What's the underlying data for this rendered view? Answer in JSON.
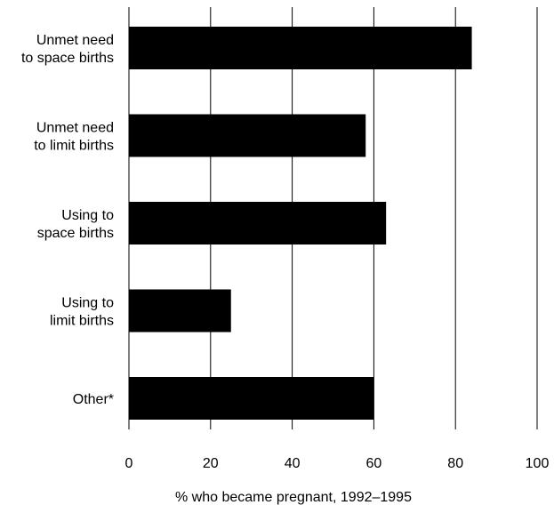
{
  "chart_data": {
    "type": "bar",
    "orientation": "horizontal",
    "categories": [
      [
        "Unmet need",
        "to space births"
      ],
      [
        "Unmet need",
        "to limit births"
      ],
      [
        "Using to",
        "space births"
      ],
      [
        "Using to",
        "limit births"
      ],
      [
        "Other*"
      ]
    ],
    "values": [
      84,
      58,
      63,
      25,
      60
    ],
    "xlabel": "% who became pregnant, 1992–1995",
    "xlim": [
      0,
      100
    ],
    "xticks": [
      0,
      20,
      40,
      60,
      80,
      100
    ],
    "grid": "vertical",
    "bar_color": "#000000",
    "grid_color": "#000000"
  }
}
